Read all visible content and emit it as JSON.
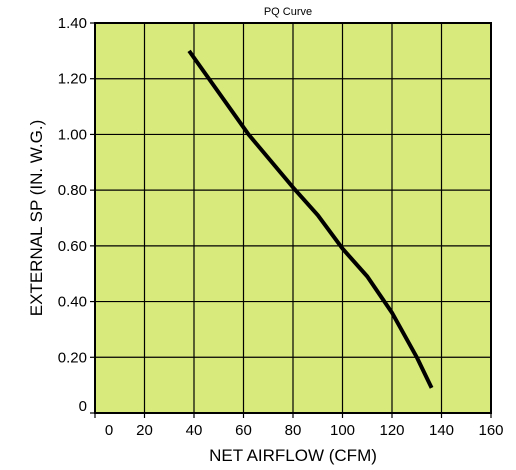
{
  "chart_data": {
    "type": "line",
    "title": "PQ Curve",
    "xlabel": "NET AIRFLOW (CFM)",
    "ylabel": "EXTERNAL SP (IN. W.G.)",
    "xlim": [
      0,
      160
    ],
    "ylim": [
      0,
      1.4
    ],
    "x_ticks": [
      "0",
      "20",
      "40",
      "60",
      "80",
      "100",
      "120",
      "140",
      "160"
    ],
    "y_ticks": [
      "0",
      "0.20",
      "0.40",
      "0.60",
      "0.80",
      "1.00",
      "1.20",
      "1.40"
    ],
    "grid": true,
    "plot_background": "#d9ea7c",
    "line_color": "#000000",
    "series": [
      {
        "x": [
          38,
          50,
          62,
          80,
          90,
          100,
          110,
          120,
          130,
          136
        ],
        "y": [
          1.3,
          1.15,
          1.0,
          0.81,
          0.71,
          0.59,
          0.49,
          0.36,
          0.2,
          0.09
        ]
      }
    ]
  }
}
